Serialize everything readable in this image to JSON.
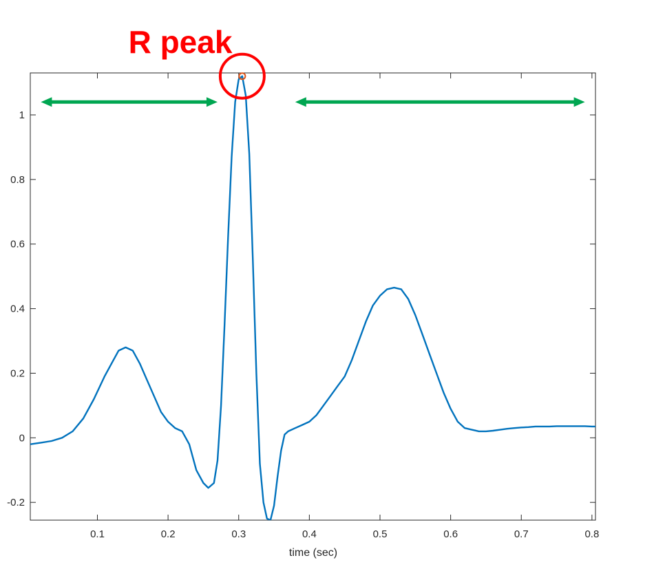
{
  "chart_data": {
    "type": "line",
    "title": "",
    "xlabel": "time (sec)",
    "ylabel": "",
    "xlim": [
      0.005,
      0.805
    ],
    "ylim": [
      -0.255,
      1.13
    ],
    "xticks": [
      0.1,
      0.2,
      0.3,
      0.4,
      0.5,
      0.6,
      0.7,
      0.8
    ],
    "xtick_labels": [
      "0.1",
      "0.2",
      "0.3",
      "0.4",
      "0.5",
      "0.6",
      "0.7",
      "0.8"
    ],
    "yticks": [
      -0.2,
      0,
      0.2,
      0.4,
      0.6,
      0.8,
      1
    ],
    "ytick_labels": [
      "-0.2",
      "0",
      "0.2",
      "0.4",
      "0.6",
      "0.8",
      "1"
    ],
    "grid": false,
    "box": true,
    "series": [
      {
        "color": "#0072BD",
        "x": [
          0.005,
          0.02,
          0.035,
          0.05,
          0.065,
          0.08,
          0.095,
          0.11,
          0.12,
          0.13,
          0.14,
          0.15,
          0.16,
          0.17,
          0.18,
          0.19,
          0.2,
          0.21,
          0.22,
          0.23,
          0.24,
          0.25,
          0.257,
          0.265,
          0.27,
          0.275,
          0.28,
          0.285,
          0.29,
          0.295,
          0.3,
          0.305,
          0.31,
          0.315,
          0.32,
          0.325,
          0.33,
          0.335,
          0.34,
          0.345,
          0.35,
          0.355,
          0.36,
          0.365,
          0.37,
          0.38,
          0.39,
          0.4,
          0.41,
          0.42,
          0.43,
          0.44,
          0.45,
          0.46,
          0.47,
          0.48,
          0.49,
          0.5,
          0.51,
          0.52,
          0.53,
          0.54,
          0.55,
          0.56,
          0.57,
          0.58,
          0.59,
          0.6,
          0.61,
          0.62,
          0.63,
          0.64,
          0.65,
          0.66,
          0.67,
          0.68,
          0.69,
          0.7,
          0.71,
          0.72,
          0.73,
          0.74,
          0.75,
          0.76,
          0.77,
          0.78,
          0.79,
          0.8,
          0.805
        ],
        "y": [
          -0.02,
          -0.015,
          -0.01,
          0.0,
          0.02,
          0.06,
          0.12,
          0.19,
          0.23,
          0.27,
          0.28,
          0.27,
          0.23,
          0.18,
          0.13,
          0.08,
          0.05,
          0.03,
          0.02,
          -0.02,
          -0.1,
          -0.14,
          -0.155,
          -0.14,
          -0.07,
          0.1,
          0.35,
          0.62,
          0.87,
          1.04,
          1.11,
          1.12,
          1.06,
          0.88,
          0.55,
          0.2,
          -0.08,
          -0.2,
          -0.25,
          -0.255,
          -0.21,
          -0.12,
          -0.04,
          0.01,
          0.02,
          0.03,
          0.04,
          0.05,
          0.07,
          0.1,
          0.13,
          0.16,
          0.19,
          0.24,
          0.3,
          0.36,
          0.41,
          0.44,
          0.46,
          0.465,
          0.46,
          0.43,
          0.38,
          0.32,
          0.26,
          0.2,
          0.14,
          0.09,
          0.05,
          0.03,
          0.025,
          0.02,
          0.02,
          0.022,
          0.025,
          0.028,
          0.03,
          0.032,
          0.033,
          0.035,
          0.035,
          0.035,
          0.036,
          0.036,
          0.036,
          0.036,
          0.036,
          0.035,
          0.035
        ]
      }
    ],
    "marker": {
      "x": 0.305,
      "y": 1.12,
      "color": "#D95319"
    },
    "annotations": {
      "label": "R peak",
      "label_color": "#ff0000",
      "circle_color": "#ff0000",
      "arrow_color": "#00a651",
      "arrows": [
        {
          "x_start": 0.02,
          "x_end": 0.27,
          "y": 1.04
        },
        {
          "x_start": 0.38,
          "x_end": 0.79,
          "y": 1.04
        }
      ]
    }
  }
}
